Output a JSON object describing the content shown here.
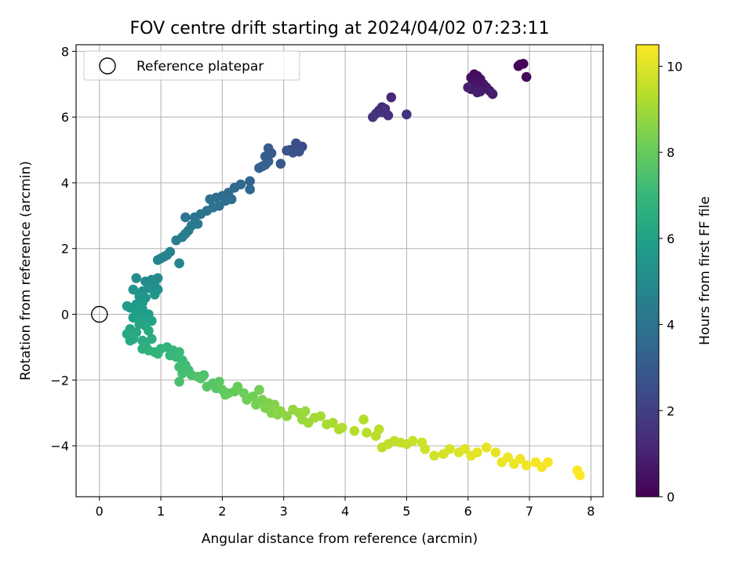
{
  "chart_data": {
    "type": "scatter",
    "title": "FOV centre drift starting at 2024/04/02 07:23:11",
    "xlabel": "Angular distance from reference (arcmin)",
    "ylabel": "Rotation from reference (arcmin)",
    "xlim": [
      -0.38,
      8.2
    ],
    "ylim": [
      -5.55,
      8.2
    ],
    "xticks": [
      0,
      1,
      2,
      3,
      4,
      5,
      6,
      7,
      8
    ],
    "yticks": [
      -4,
      -2,
      0,
      2,
      4,
      6,
      8
    ],
    "grid": true,
    "legend": {
      "position": "top-left",
      "entries": [
        {
          "label": "Reference platepar",
          "marker": "open-circle"
        }
      ]
    },
    "reference_point": {
      "x": 0,
      "y": 0
    },
    "colorbar": {
      "label": "Hours from first FF file",
      "colormap": "viridis",
      "range": [
        0,
        10.5
      ],
      "ticks": [
        0,
        2,
        4,
        6,
        8,
        10
      ]
    },
    "colormap_stops": [
      "#440154",
      "#482878",
      "#3e4989",
      "#31688e",
      "#26828e",
      "#1f9e89",
      "#35b779",
      "#6ece58",
      "#b5de2b",
      "#fde725"
    ],
    "points": [
      {
        "x": 6.85,
        "y": 7.6,
        "t": 0.05
      },
      {
        "x": 6.9,
        "y": 7.62,
        "t": 0.1
      },
      {
        "x": 6.82,
        "y": 7.55,
        "t": 0.15
      },
      {
        "x": 6.95,
        "y": 7.22,
        "t": 0.2
      },
      {
        "x": 6.1,
        "y": 7.3,
        "t": 0.3
      },
      {
        "x": 6.15,
        "y": 7.25,
        "t": 0.35
      },
      {
        "x": 6.05,
        "y": 7.2,
        "t": 0.4
      },
      {
        "x": 6.2,
        "y": 7.15,
        "t": 0.45
      },
      {
        "x": 6.08,
        "y": 7.05,
        "t": 0.5
      },
      {
        "x": 6.25,
        "y": 7.0,
        "t": 0.55
      },
      {
        "x": 6.12,
        "y": 6.95,
        "t": 0.6
      },
      {
        "x": 6.3,
        "y": 6.9,
        "t": 0.65
      },
      {
        "x": 6.05,
        "y": 6.85,
        "t": 0.7
      },
      {
        "x": 6.35,
        "y": 6.8,
        "t": 0.75
      },
      {
        "x": 6.2,
        "y": 6.78,
        "t": 0.8
      },
      {
        "x": 6.4,
        "y": 6.7,
        "t": 0.85
      },
      {
        "x": 6.15,
        "y": 6.75,
        "t": 0.9
      },
      {
        "x": 6.0,
        "y": 6.9,
        "t": 0.95
      },
      {
        "x": 4.75,
        "y": 6.6,
        "t": 1.2
      },
      {
        "x": 4.6,
        "y": 6.3,
        "t": 1.3
      },
      {
        "x": 4.55,
        "y": 6.2,
        "t": 1.35
      },
      {
        "x": 4.65,
        "y": 6.25,
        "t": 1.4
      },
      {
        "x": 4.5,
        "y": 6.1,
        "t": 1.45
      },
      {
        "x": 4.7,
        "y": 6.05,
        "t": 1.5
      },
      {
        "x": 4.45,
        "y": 6.0,
        "t": 1.55
      },
      {
        "x": 5.0,
        "y": 6.08,
        "t": 1.6
      },
      {
        "x": 4.6,
        "y": 6.15,
        "t": 1.5
      },
      {
        "x": 3.3,
        "y": 5.1,
        "t": 2.4
      },
      {
        "x": 3.2,
        "y": 5.2,
        "t": 2.5
      },
      {
        "x": 3.25,
        "y": 4.95,
        "t": 2.55
      },
      {
        "x": 3.1,
        "y": 5.0,
        "t": 2.6
      },
      {
        "x": 3.15,
        "y": 4.92,
        "t": 2.65
      },
      {
        "x": 3.05,
        "y": 4.98,
        "t": 2.7
      },
      {
        "x": 2.95,
        "y": 4.58,
        "t": 2.9
      },
      {
        "x": 2.75,
        "y": 5.05,
        "t": 3.0
      },
      {
        "x": 2.8,
        "y": 4.9,
        "t": 3.05
      },
      {
        "x": 2.7,
        "y": 4.8,
        "t": 3.1
      },
      {
        "x": 2.75,
        "y": 4.65,
        "t": 3.15
      },
      {
        "x": 2.65,
        "y": 4.5,
        "t": 3.2
      },
      {
        "x": 2.6,
        "y": 4.45,
        "t": 3.25
      },
      {
        "x": 2.7,
        "y": 4.55,
        "t": 3.3
      },
      {
        "x": 2.45,
        "y": 4.05,
        "t": 3.4
      },
      {
        "x": 2.3,
        "y": 3.95,
        "t": 3.5
      },
      {
        "x": 2.45,
        "y": 3.8,
        "t": 3.55
      },
      {
        "x": 2.2,
        "y": 3.85,
        "t": 3.6
      },
      {
        "x": 2.1,
        "y": 3.7,
        "t": 3.65
      },
      {
        "x": 2.0,
        "y": 3.6,
        "t": 3.7
      },
      {
        "x": 2.05,
        "y": 3.45,
        "t": 3.75
      },
      {
        "x": 1.9,
        "y": 3.55,
        "t": 3.8
      },
      {
        "x": 1.8,
        "y": 3.5,
        "t": 3.85
      },
      {
        "x": 2.15,
        "y": 3.5,
        "t": 3.8
      },
      {
        "x": 1.95,
        "y": 3.3,
        "t": 3.9
      },
      {
        "x": 1.85,
        "y": 3.25,
        "t": 3.95
      },
      {
        "x": 1.75,
        "y": 3.15,
        "t": 4.0
      },
      {
        "x": 1.65,
        "y": 3.05,
        "t": 4.05
      },
      {
        "x": 1.55,
        "y": 2.95,
        "t": 4.1
      },
      {
        "x": 1.4,
        "y": 2.95,
        "t": 4.15
      },
      {
        "x": 1.6,
        "y": 2.75,
        "t": 4.2
      },
      {
        "x": 1.5,
        "y": 2.7,
        "t": 4.25
      },
      {
        "x": 1.45,
        "y": 2.55,
        "t": 4.3
      },
      {
        "x": 1.4,
        "y": 2.45,
        "t": 4.35
      },
      {
        "x": 1.35,
        "y": 2.35,
        "t": 4.4
      },
      {
        "x": 1.25,
        "y": 2.25,
        "t": 4.45
      },
      {
        "x": 1.15,
        "y": 1.9,
        "t": 4.6
      },
      {
        "x": 1.1,
        "y": 1.8,
        "t": 4.65
      },
      {
        "x": 1.0,
        "y": 1.7,
        "t": 4.7
      },
      {
        "x": 0.95,
        "y": 1.65,
        "t": 4.75
      },
      {
        "x": 1.3,
        "y": 1.55,
        "t": 4.8
      },
      {
        "x": 1.05,
        "y": 1.75,
        "t": 4.7
      },
      {
        "x": 0.95,
        "y": 1.1,
        "t": 5.0
      },
      {
        "x": 0.85,
        "y": 1.05,
        "t": 5.05
      },
      {
        "x": 0.75,
        "y": 1.0,
        "t": 5.1
      },
      {
        "x": 0.6,
        "y": 1.1,
        "t": 5.15
      },
      {
        "x": 0.9,
        "y": 0.9,
        "t": 5.2
      },
      {
        "x": 0.8,
        "y": 0.8,
        "t": 5.25
      },
      {
        "x": 0.7,
        "y": 0.7,
        "t": 5.3
      },
      {
        "x": 0.95,
        "y": 0.75,
        "t": 5.35
      },
      {
        "x": 0.65,
        "y": 0.55,
        "t": 5.4
      },
      {
        "x": 0.55,
        "y": 0.75,
        "t": 5.45
      },
      {
        "x": 0.75,
        "y": 0.5,
        "t": 5.5
      },
      {
        "x": 0.9,
        "y": 0.6,
        "t": 5.55
      },
      {
        "x": 0.7,
        "y": 0.35,
        "t": 5.6
      },
      {
        "x": 0.6,
        "y": 0.3,
        "t": 5.65
      },
      {
        "x": 0.5,
        "y": 0.2,
        "t": 5.7
      },
      {
        "x": 0.45,
        "y": 0.25,
        "t": 5.75
      },
      {
        "x": 0.7,
        "y": 0.15,
        "t": 5.8
      },
      {
        "x": 0.8,
        "y": 0.0,
        "t": 5.85
      },
      {
        "x": 0.6,
        "y": 0.05,
        "t": 5.9
      },
      {
        "x": 0.55,
        "y": -0.1,
        "t": 5.95
      },
      {
        "x": 0.7,
        "y": -0.15,
        "t": 6.0
      },
      {
        "x": 0.85,
        "y": -0.2,
        "t": 6.05
      },
      {
        "x": 0.65,
        "y": -0.3,
        "t": 6.1
      },
      {
        "x": 0.5,
        "y": -0.45,
        "t": 6.15
      },
      {
        "x": 0.75,
        "y": -0.35,
        "t": 6.2
      },
      {
        "x": 0.6,
        "y": -0.55,
        "t": 6.25
      },
      {
        "x": 0.45,
        "y": -0.6,
        "t": 6.3
      },
      {
        "x": 0.8,
        "y": -0.5,
        "t": 6.35
      },
      {
        "x": 0.55,
        "y": -0.75,
        "t": 6.4
      },
      {
        "x": 0.7,
        "y": -0.8,
        "t": 6.45
      },
      {
        "x": 0.85,
        "y": -0.75,
        "t": 6.5
      },
      {
        "x": 0.5,
        "y": -0.8,
        "t": 6.3
      },
      {
        "x": 0.75,
        "y": -0.95,
        "t": 6.6
      },
      {
        "x": 0.7,
        "y": -1.05,
        "t": 6.65
      },
      {
        "x": 0.8,
        "y": -1.1,
        "t": 6.7
      },
      {
        "x": 0.9,
        "y": -1.15,
        "t": 6.75
      },
      {
        "x": 1.0,
        "y": -1.05,
        "t": 6.8
      },
      {
        "x": 0.95,
        "y": -1.2,
        "t": 6.85
      },
      {
        "x": 1.1,
        "y": -1.0,
        "t": 6.9
      },
      {
        "x": 1.2,
        "y": -1.1,
        "t": 6.95
      },
      {
        "x": 1.15,
        "y": -1.25,
        "t": 7.0
      },
      {
        "x": 1.25,
        "y": -1.3,
        "t": 7.05
      },
      {
        "x": 1.3,
        "y": -1.15,
        "t": 7.1
      },
      {
        "x": 1.35,
        "y": -1.4,
        "t": 7.15
      },
      {
        "x": 1.4,
        "y": -1.55,
        "t": 7.2
      },
      {
        "x": 1.3,
        "y": -1.6,
        "t": 7.25
      },
      {
        "x": 1.45,
        "y": -1.7,
        "t": 7.3
      },
      {
        "x": 1.35,
        "y": -1.8,
        "t": 7.35
      },
      {
        "x": 1.3,
        "y": -2.05,
        "t": 7.4
      },
      {
        "x": 1.5,
        "y": -1.85,
        "t": 7.45
      },
      {
        "x": 1.6,
        "y": -1.9,
        "t": 7.5
      },
      {
        "x": 1.7,
        "y": -1.85,
        "t": 7.55
      },
      {
        "x": 1.65,
        "y": -1.95,
        "t": 7.6
      },
      {
        "x": 1.85,
        "y": -2.1,
        "t": 7.65
      },
      {
        "x": 1.75,
        "y": -2.2,
        "t": 7.7
      },
      {
        "x": 1.9,
        "y": -2.25,
        "t": 7.75
      },
      {
        "x": 1.95,
        "y": -2.05,
        "t": 7.8
      },
      {
        "x": 2.0,
        "y": -2.3,
        "t": 7.85
      },
      {
        "x": 2.1,
        "y": -2.4,
        "t": 7.9
      },
      {
        "x": 2.2,
        "y": -2.35,
        "t": 7.95
      },
      {
        "x": 2.05,
        "y": -2.45,
        "t": 8.0
      },
      {
        "x": 2.25,
        "y": -2.2,
        "t": 8.05
      },
      {
        "x": 2.35,
        "y": -2.4,
        "t": 8.1
      },
      {
        "x": 2.4,
        "y": -2.6,
        "t": 8.15
      },
      {
        "x": 2.5,
        "y": -2.5,
        "t": 8.2
      },
      {
        "x": 2.6,
        "y": -2.3,
        "t": 8.25
      },
      {
        "x": 2.55,
        "y": -2.75,
        "t": 8.3
      },
      {
        "x": 2.65,
        "y": -2.6,
        "t": 8.35
      },
      {
        "x": 2.75,
        "y": -2.7,
        "t": 8.4
      },
      {
        "x": 2.7,
        "y": -2.85,
        "t": 8.45
      },
      {
        "x": 2.85,
        "y": -2.75,
        "t": 8.5
      },
      {
        "x": 2.8,
        "y": -3.0,
        "t": 8.55
      },
      {
        "x": 2.9,
        "y": -3.05,
        "t": 8.6
      },
      {
        "x": 2.95,
        "y": -2.95,
        "t": 8.65
      },
      {
        "x": 3.05,
        "y": -3.1,
        "t": 8.7
      },
      {
        "x": 3.15,
        "y": -2.9,
        "t": 8.75
      },
      {
        "x": 3.25,
        "y": -3.0,
        "t": 8.8
      },
      {
        "x": 3.3,
        "y": -3.2,
        "t": 8.85
      },
      {
        "x": 3.35,
        "y": -2.95,
        "t": 8.9
      },
      {
        "x": 3.4,
        "y": -3.3,
        "t": 8.95
      },
      {
        "x": 3.5,
        "y": -3.15,
        "t": 9.0
      },
      {
        "x": 3.6,
        "y": -3.1,
        "t": 9.05
      },
      {
        "x": 3.7,
        "y": -3.35,
        "t": 9.1
      },
      {
        "x": 3.8,
        "y": -3.3,
        "t": 9.15
      },
      {
        "x": 3.9,
        "y": -3.5,
        "t": 9.2
      },
      {
        "x": 3.95,
        "y": -3.45,
        "t": 9.25
      },
      {
        "x": 4.15,
        "y": -3.55,
        "t": 9.3
      },
      {
        "x": 4.3,
        "y": -3.2,
        "t": 9.3
      },
      {
        "x": 4.35,
        "y": -3.6,
        "t": 9.35
      },
      {
        "x": 4.5,
        "y": -3.7,
        "t": 9.4
      },
      {
        "x": 4.55,
        "y": -3.5,
        "t": 9.4
      },
      {
        "x": 4.6,
        "y": -4.05,
        "t": 9.45
      },
      {
        "x": 4.7,
        "y": -3.95,
        "t": 9.5
      },
      {
        "x": 4.8,
        "y": -3.85,
        "t": 9.5
      },
      {
        "x": 4.9,
        "y": -3.9,
        "t": 9.55
      },
      {
        "x": 5.0,
        "y": -3.95,
        "t": 9.6
      },
      {
        "x": 5.1,
        "y": -3.85,
        "t": 9.65
      },
      {
        "x": 5.25,
        "y": -3.9,
        "t": 9.7
      },
      {
        "x": 5.3,
        "y": -4.1,
        "t": 9.75
      },
      {
        "x": 5.45,
        "y": -4.3,
        "t": 9.8
      },
      {
        "x": 5.6,
        "y": -4.25,
        "t": 9.85
      },
      {
        "x": 5.7,
        "y": -4.1,
        "t": 9.9
      },
      {
        "x": 5.85,
        "y": -4.2,
        "t": 9.95
      },
      {
        "x": 5.95,
        "y": -4.1,
        "t": 10.0
      },
      {
        "x": 6.05,
        "y": -4.3,
        "t": 10.05
      },
      {
        "x": 6.15,
        "y": -4.2,
        "t": 10.1
      },
      {
        "x": 6.3,
        "y": -4.05,
        "t": 10.15
      },
      {
        "x": 6.45,
        "y": -4.2,
        "t": 10.15
      },
      {
        "x": 6.55,
        "y": -4.5,
        "t": 10.2
      },
      {
        "x": 6.65,
        "y": -4.35,
        "t": 10.25
      },
      {
        "x": 6.75,
        "y": -4.55,
        "t": 10.25
      },
      {
        "x": 6.85,
        "y": -4.4,
        "t": 10.3
      },
      {
        "x": 6.95,
        "y": -4.6,
        "t": 10.3
      },
      {
        "x": 7.1,
        "y": -4.5,
        "t": 10.35
      },
      {
        "x": 7.2,
        "y": -4.65,
        "t": 10.35
      },
      {
        "x": 7.3,
        "y": -4.5,
        "t": 10.4
      },
      {
        "x": 7.78,
        "y": -4.75,
        "t": 10.45
      },
      {
        "x": 7.82,
        "y": -4.9,
        "t": 10.5
      }
    ]
  }
}
